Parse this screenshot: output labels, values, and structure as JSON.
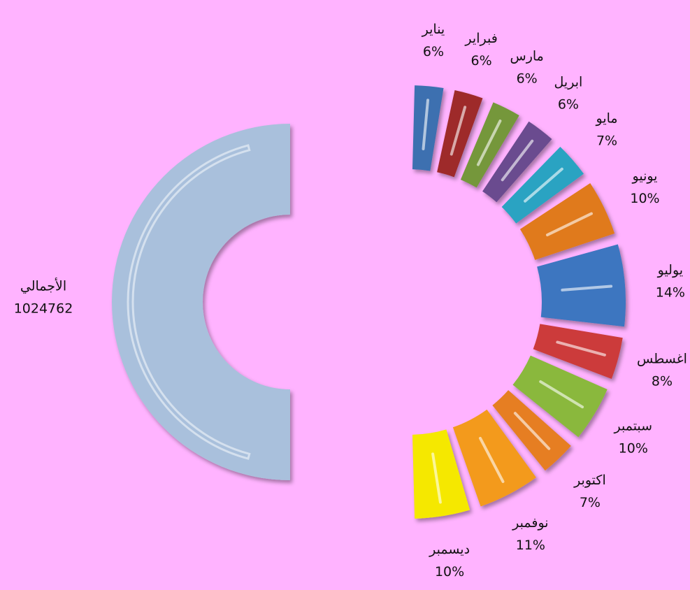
{
  "chart_data": {
    "type": "pie",
    "categories": [
      "يناير",
      "فبراير",
      "مارس",
      "ابريل",
      "مايو",
      "يونيو",
      "يوليو",
      "اغسطس",
      "سبتمبر",
      "اكتوبر",
      "نوفمبر",
      "ديسمبر"
    ],
    "values": [
      6,
      6,
      6,
      6,
      7,
      10,
      14,
      8,
      10,
      7,
      11,
      10
    ],
    "value_labels": [
      "6%",
      "6%",
      "6%",
      "6%",
      "7%",
      "10%",
      "14%",
      "8%",
      "10%",
      "7%",
      "11%",
      "10%"
    ],
    "colors": [
      "#3d6fb0",
      "#9e2a2b",
      "#74973a",
      "#6b4c8f",
      "#2aa3c2",
      "#e07a1f",
      "#3d76c0",
      "#cc3a3a",
      "#8ab83e",
      "#e67e22",
      "#f39a1e",
      "#f5e800"
    ],
    "total": {
      "label": "الأجمالي",
      "value": 1024762,
      "color": "#a9c0dc"
    }
  }
}
